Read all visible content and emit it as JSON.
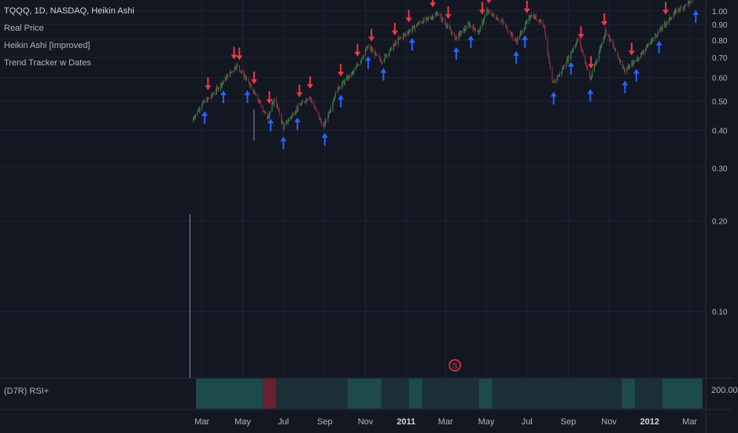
{
  "legend": {
    "symbol_line": "TQQQ, 1D, NASDAQ, Heikin Ashi",
    "indicator_1": "Real Price",
    "indicator_2": "Heikin Ashi [Improved]",
    "indicator_3": "Trend Tracker w Dates"
  },
  "rsi_panel": {
    "label": "(D7R) RSI+",
    "value_label": "200.00"
  },
  "event_marker": {
    "label": "S",
    "date": "2011-03"
  },
  "colors": {
    "background": "#131722",
    "grid": "#1f2433",
    "up_candle": "#3c7b46",
    "down_candle": "#8c2f43",
    "sell_arrow": "#f23645",
    "buy_arrow": "#2962ff",
    "rsi_fill": "#1d4b4a",
    "rsi_red": "#6b2030"
  },
  "chart_data": {
    "type": "candlestick",
    "price_scale": "log",
    "x_ticks": [
      "Mar",
      "May",
      "Jul",
      "Sep",
      "Nov",
      "2011",
      "Mar",
      "May",
      "Jul",
      "Sep",
      "Nov",
      "2012",
      "Mar"
    ],
    "y_ticks": [
      "1.00",
      "0.90",
      "0.80",
      "0.70",
      "0.60",
      "0.50",
      "0.40",
      "0.30",
      "0.20",
      "0.10"
    ],
    "ylim": [
      0.06,
      1.12
    ],
    "price_path": [
      [
        "2010-02-11",
        0.21
      ],
      [
        "2010-02-16",
        0.44
      ],
      [
        "2010-03-01",
        0.49
      ],
      [
        "2010-03-15",
        0.52
      ],
      [
        "2010-04-01",
        0.58
      ],
      [
        "2010-04-22",
        0.66
      ],
      [
        "2010-05-07",
        0.59
      ],
      [
        "2010-05-25",
        0.5
      ],
      [
        "2010-06-07",
        0.44
      ],
      [
        "2010-06-18",
        0.51
      ],
      [
        "2010-07-01",
        0.41
      ],
      [
        "2010-07-20",
        0.47
      ],
      [
        "2010-08-09",
        0.52
      ],
      [
        "2010-08-30",
        0.41
      ],
      [
        "2010-09-20",
        0.55
      ],
      [
        "2010-10-15",
        0.63
      ],
      [
        "2010-11-05",
        0.76
      ],
      [
        "2010-11-25",
        0.68
      ],
      [
        "2010-12-20",
        0.8
      ],
      [
        "2011-01-20",
        0.91
      ],
      [
        "2011-02-18",
        0.98
      ],
      [
        "2011-03-16",
        0.81
      ],
      [
        "2011-04-05",
        0.9
      ],
      [
        "2011-04-20",
        0.85
      ],
      [
        "2011-05-02",
        1.0
      ],
      [
        "2011-05-25",
        0.92
      ],
      [
        "2011-06-15",
        0.79
      ],
      [
        "2011-07-07",
        0.97
      ],
      [
        "2011-07-26",
        0.91
      ],
      [
        "2011-08-08",
        0.57
      ],
      [
        "2011-08-20",
        0.62
      ],
      [
        "2011-09-16",
        0.81
      ],
      [
        "2011-10-04",
        0.59
      ],
      [
        "2011-10-27",
        0.86
      ],
      [
        "2011-11-25",
        0.63
      ],
      [
        "2011-12-15",
        0.7
      ],
      [
        "2012-01-10",
        0.83
      ],
      [
        "2012-02-10",
        1.0
      ],
      [
        "2012-03-05",
        1.08
      ]
    ],
    "sell_signal_dates": [
      "2010-03-10",
      "2010-04-18",
      "2010-04-26",
      "2010-05-18",
      "2010-06-10",
      "2010-07-25",
      "2010-08-10",
      "2010-09-25",
      "2010-10-20",
      "2010-11-10",
      "2010-12-15",
      "2011-01-05",
      "2011-02-10",
      "2011-03-05",
      "2011-04-25",
      "2011-05-05",
      "2011-07-01",
      "2011-09-20",
      "2011-10-05",
      "2011-10-25",
      "2011-12-05",
      "2012-01-25"
    ],
    "buy_signal_dates": [
      "2010-03-05",
      "2010-04-02",
      "2010-05-08",
      "2010-06-12",
      "2010-07-01",
      "2010-07-22",
      "2010-09-01",
      "2010-09-25",
      "2010-11-05",
      "2010-11-28",
      "2011-01-10",
      "2011-03-17",
      "2011-04-08",
      "2011-06-15",
      "2011-06-28",
      "2011-08-10",
      "2011-09-05",
      "2011-10-04",
      "2011-11-25",
      "2011-12-12",
      "2012-01-15",
      "2012-03-10"
    ],
    "rsi_segments": [
      [
        "2010-02-20",
        "2010-06-01",
        "green"
      ],
      [
        "2010-06-01",
        "2010-06-20",
        "red"
      ],
      [
        "2010-06-20",
        "2010-10-05",
        "dark"
      ],
      [
        "2010-10-05",
        "2010-11-25",
        "green"
      ],
      [
        "2010-11-25",
        "2011-01-05",
        "dark"
      ],
      [
        "2011-01-05",
        "2011-01-25",
        "green"
      ],
      [
        "2011-01-25",
        "2011-04-20",
        "dark"
      ],
      [
        "2011-04-20",
        "2011-05-10",
        "green"
      ],
      [
        "2011-05-10",
        "2011-11-20",
        "dark"
      ],
      [
        "2011-11-20",
        "2011-12-10",
        "green"
      ],
      [
        "2011-12-10",
        "2012-01-20",
        "dark"
      ],
      [
        "2012-01-20",
        "2012-03-20",
        "green"
      ]
    ]
  }
}
